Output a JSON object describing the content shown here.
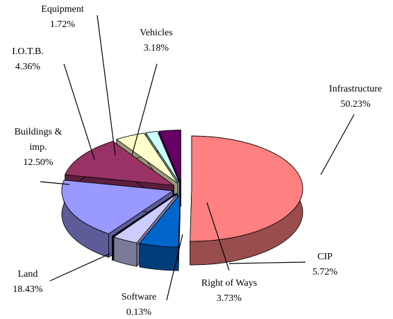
{
  "chart_data": {
    "type": "pie3d",
    "categories": [
      "Infrastructure",
      "CIP",
      "Right of Ways",
      "Software",
      "Land",
      "Buildings & imp.",
      "I.O.T.B.",
      "Equipment",
      "Vehicles"
    ],
    "values": [
      50.23,
      5.72,
      3.73,
      0.13,
      18.43,
      12.5,
      4.36,
      1.72,
      3.18
    ],
    "value_labels": [
      "50.23%",
      "5.72%",
      "3.73%",
      "0.13%",
      "18.43%",
      "12.50%",
      "4.36%",
      "1.72%",
      "3.18%"
    ],
    "colors": [
      "#ff8080",
      "#0066cc",
      "#ccccff",
      "#000080",
      "#9999ff",
      "#993366",
      "#ffffcc",
      "#ccffff",
      "#660066"
    ]
  }
}
